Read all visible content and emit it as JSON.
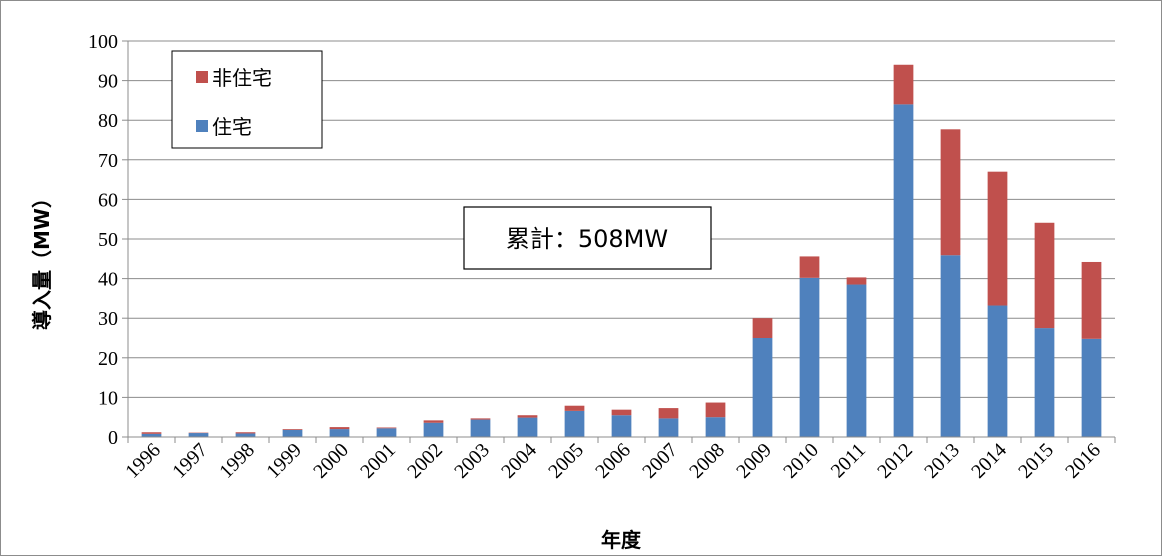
{
  "chart_data": {
    "type": "bar",
    "stacked": true,
    "categories": [
      "1996",
      "1997",
      "1998",
      "1999",
      "2000",
      "2001",
      "2002",
      "2003",
      "2004",
      "2005",
      "2006",
      "2007",
      "2008",
      "2009",
      "2010",
      "2011",
      "2012",
      "2013",
      "2014",
      "2015",
      "2016"
    ],
    "series": [
      {
        "name": "住宅",
        "color": "#4f81bd",
        "values": [
          0.8,
          1.0,
          0.9,
          1.8,
          2.0,
          2.2,
          3.6,
          4.4,
          4.9,
          6.6,
          5.5,
          4.7,
          5.0,
          25.0,
          40.2,
          38.5,
          84.0,
          45.9,
          33.2,
          27.5,
          24.8
        ]
      },
      {
        "name": "非住宅",
        "color": "#c0504d",
        "values": [
          0.4,
          0.1,
          0.3,
          0.2,
          0.5,
          0.2,
          0.6,
          0.3,
          0.6,
          1.3,
          1.4,
          2.6,
          3.7,
          5.0,
          5.4,
          1.8,
          10.0,
          31.8,
          33.8,
          26.6,
          19.4
        ]
      }
    ],
    "title": "",
    "xlabel": "年度",
    "ylabel": "導入量（MW）",
    "ylim": [
      0,
      100
    ],
    "yticks": [
      0,
      10,
      20,
      30,
      40,
      50,
      60,
      70,
      80,
      90,
      100
    ],
    "grid": true,
    "legend_position": "top-left",
    "annotation": "累計：508MW"
  }
}
